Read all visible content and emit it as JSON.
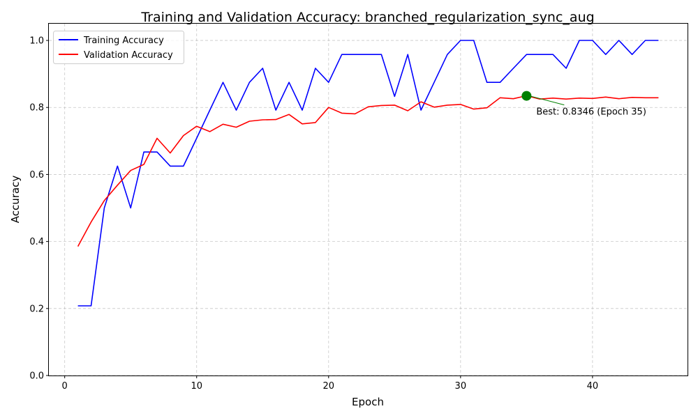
{
  "chart_data": {
    "type": "line",
    "title": "Training and Validation Accuracy: branched_regularization_sync_aug",
    "xlabel": "Epoch",
    "ylabel": "Accuracy",
    "xlim": [
      -1.2,
      47.2
    ],
    "ylim": [
      0.0,
      1.05
    ],
    "x_ticks": [
      0,
      10,
      20,
      30,
      40
    ],
    "y_ticks": [
      0.0,
      0.2,
      0.4,
      0.6,
      0.8,
      1.0
    ],
    "x_tick_labels": [
      "0",
      "10",
      "20",
      "30",
      "40"
    ],
    "y_tick_labels": [
      "0.0",
      "0.2",
      "0.4",
      "0.6",
      "0.8",
      "1.0"
    ],
    "grid": true,
    "legend_position": "upper-left",
    "x": [
      1,
      2,
      3,
      4,
      5,
      6,
      7,
      8,
      9,
      10,
      11,
      12,
      13,
      14,
      15,
      16,
      17,
      18,
      19,
      20,
      21,
      22,
      23,
      24,
      25,
      26,
      27,
      28,
      29,
      30,
      31,
      32,
      33,
      34,
      35,
      36,
      37,
      38,
      39,
      40,
      41,
      42,
      43,
      44,
      45
    ],
    "series": [
      {
        "name": "Training Accuracy",
        "color": "#0000ff",
        "values": [
          0.208,
          0.208,
          0.5,
          0.625,
          0.5,
          0.667,
          0.667,
          0.625,
          0.625,
          0.708,
          0.792,
          0.875,
          0.792,
          0.875,
          0.917,
          0.792,
          0.875,
          0.792,
          0.917,
          0.875,
          0.958,
          0.958,
          0.958,
          0.958,
          0.833,
          0.958,
          0.792,
          0.875,
          0.958,
          1.0,
          1.0,
          0.875,
          0.875,
          0.917,
          0.958,
          0.958,
          0.958,
          0.917,
          1.0,
          1.0,
          0.958,
          1.0,
          0.958,
          1.0,
          1.0
        ]
      },
      {
        "name": "Validation Accuracy",
        "color": "#ff0000",
        "values": [
          0.385,
          0.458,
          0.522,
          0.568,
          0.612,
          0.63,
          0.708,
          0.664,
          0.716,
          0.744,
          0.728,
          0.75,
          0.741,
          0.759,
          0.763,
          0.764,
          0.779,
          0.751,
          0.755,
          0.8,
          0.783,
          0.781,
          0.802,
          0.806,
          0.807,
          0.79,
          0.817,
          0.801,
          0.807,
          0.809,
          0.795,
          0.799,
          0.829,
          0.826,
          0.835,
          0.825,
          0.828,
          0.825,
          0.828,
          0.827,
          0.831,
          0.826,
          0.83,
          0.829,
          0.829
        ]
      }
    ],
    "annotation": {
      "text": "Best: 0.8346 (Epoch 35)",
      "x": 35,
      "y": 0.8346,
      "marker_color": "#008000",
      "arrow_color": "#008000"
    }
  }
}
